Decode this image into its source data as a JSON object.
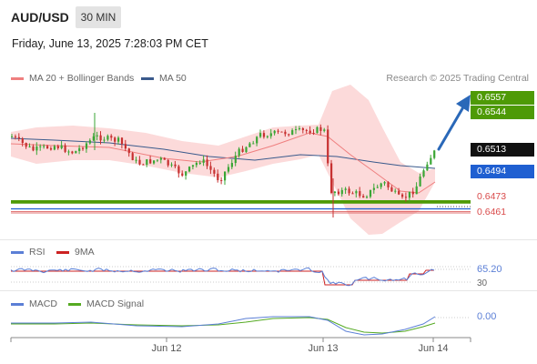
{
  "header": {
    "symbol": "AUD/USD",
    "timeframe": "30 MIN",
    "datetime": "Friday, June 13, 2025 7:28:03 PM CET"
  },
  "main_legend": {
    "ma20_label": "MA 20 + Bollinger Bands",
    "ma50_label": "MA 50",
    "copyright": "Research © 2025 Trading Central"
  },
  "colors": {
    "up": "#3aa635",
    "down": "#c73030",
    "ma20": "#ef7f7f",
    "ma50": "#3a5a8c",
    "band": "#fbd3d3",
    "resistance": "#4e9a06",
    "current": "#111111",
    "pivot": "#1f5fd1",
    "support": "#d94a4a",
    "rsi": "#5b7fd6",
    "rsi_ma": "#cc2222",
    "macd": "#5b7fd6",
    "macd_signal": "#55aa22",
    "arrow": "#2a68b8"
  },
  "price_levels": [
    {
      "value": "0.6557",
      "kind": "resistance"
    },
    {
      "value": "0.6544",
      "kind": "resistance"
    },
    {
      "value": "0.6513",
      "kind": "current"
    },
    {
      "value": "0.6494",
      "kind": "pivot"
    },
    {
      "value": "0.6473",
      "kind": "support"
    },
    {
      "value": "0.6461",
      "kind": "support"
    }
  ],
  "rsi_panel": {
    "label": "RSI",
    "ma_label": "9MA",
    "value": "65.20",
    "level_low": "30"
  },
  "macd_panel": {
    "label": "MACD",
    "signal_label": "MACD Signal",
    "value": "0.00"
  },
  "x_axis": {
    "ticks": [
      "Jun 12",
      "Jun 13",
      "Jun 14"
    ]
  }
}
